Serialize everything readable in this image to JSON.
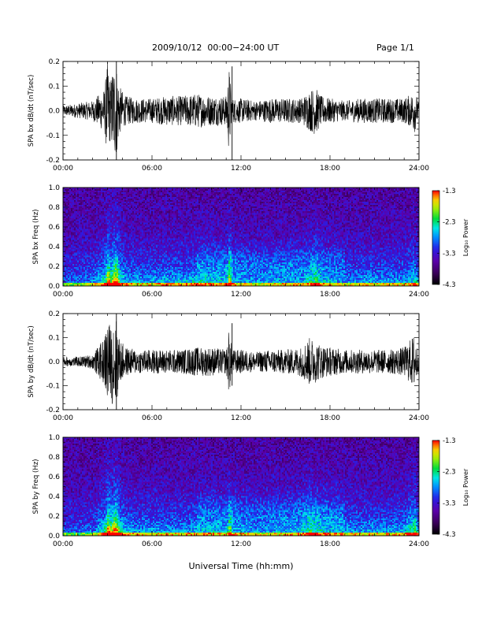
{
  "header": {
    "title": "2009/10/12  00:00−24:00 UT",
    "page": "Page 1/1"
  },
  "chart_data": [
    {
      "type": "line",
      "panel": "bx-time-series",
      "ylabel": "SPA bx dB/dt (nT/sec)",
      "ylim": [
        -0.2,
        0.2
      ],
      "y_ticks": [
        "-0.2",
        "-0.1",
        "0.0",
        "0.1",
        "0.2"
      ],
      "x_ticks": [
        "00:00",
        "06:00",
        "12:00",
        "18:00",
        "24:00"
      ],
      "x_range_hours": [
        0,
        24
      ],
      "series": [
        {
          "x_hours": [
            0,
            1,
            2,
            2.8,
            3.0,
            3.2,
            3.4,
            3.6,
            3.8,
            4.2,
            5,
            6,
            7,
            8,
            9,
            10,
            11,
            11.2,
            11.4,
            11.6,
            12,
            13,
            14,
            15,
            16,
            16.6,
            17,
            17.4,
            18,
            19,
            20,
            21,
            22,
            23,
            23.5,
            23.7,
            24
          ],
          "envelope": [
            0.02,
            0.03,
            0.04,
            0.09,
            0.2,
            0.12,
            0.2,
            0.19,
            0.1,
            0.06,
            0.05,
            0.05,
            0.06,
            0.06,
            0.07,
            0.06,
            0.06,
            0.18,
            0.05,
            0.05,
            0.05,
            0.04,
            0.05,
            0.05,
            0.05,
            0.08,
            0.1,
            0.06,
            0.05,
            0.04,
            0.05,
            0.05,
            0.05,
            0.05,
            0.07,
            0.09,
            0.03
          ]
        }
      ],
      "spikes": [
        {
          "x_hours": 11.4,
          "y_min": -0.2,
          "y_max": 0.18
        },
        {
          "x_hours": 3.6,
          "y_min": -0.2,
          "y_max": 0.2
        }
      ]
    },
    {
      "type": "heatmap",
      "panel": "bx-spectrogram",
      "ylabel": "SPA bx Freq (Hz)",
      "ylim": [
        0.0,
        1.0
      ],
      "y_ticks": [
        "0.0",
        "0.2",
        "0.4",
        "0.6",
        "0.8",
        "1.0"
      ],
      "x_ticks": [
        "00:00",
        "06:00",
        "12:00",
        "18:00",
        "24:00"
      ],
      "colorbar": {
        "label": "Log₁₀ Power",
        "range": [
          -4.3,
          -1.3
        ],
        "ticks": [
          "-1.3",
          "-2.3",
          "-3.3",
          "-4.3"
        ]
      }
    },
    {
      "type": "line",
      "panel": "by-time-series",
      "ylabel": "SPA by dB/dt (nT/sec)",
      "ylim": [
        -0.2,
        0.2
      ],
      "y_ticks": [
        "-0.2",
        "-0.1",
        "0.0",
        "0.1",
        "0.2"
      ],
      "x_ticks": [
        "00:00",
        "06:00",
        "12:00",
        "18:00",
        "24:00"
      ],
      "x_range_hours": [
        0,
        24
      ],
      "series": [
        {
          "x_hours": [
            0,
            1,
            2,
            2.8,
            3.0,
            3.2,
            3.4,
            3.6,
            3.8,
            4.2,
            5,
            6,
            7,
            8,
            9,
            10,
            11,
            11.2,
            11.4,
            11.6,
            12,
            13,
            14,
            15,
            16,
            16.6,
            17,
            17.4,
            18,
            19,
            20,
            21,
            22,
            23,
            23.5,
            23.7,
            24
          ],
          "envelope": [
            0.02,
            0.02,
            0.03,
            0.1,
            0.2,
            0.14,
            0.2,
            0.18,
            0.1,
            0.06,
            0.05,
            0.05,
            0.05,
            0.05,
            0.06,
            0.06,
            0.05,
            0.14,
            0.05,
            0.05,
            0.05,
            0.04,
            0.05,
            0.05,
            0.06,
            0.1,
            0.09,
            0.07,
            0.06,
            0.05,
            0.05,
            0.05,
            0.05,
            0.06,
            0.1,
            0.12,
            0.03
          ]
        }
      ],
      "spikes": [
        {
          "x_hours": 11.4,
          "y_min": -0.1,
          "y_max": 0.16
        },
        {
          "x_hours": 3.6,
          "y_min": -0.2,
          "y_max": 0.2
        }
      ]
    },
    {
      "type": "heatmap",
      "panel": "by-spectrogram",
      "ylabel": "SPA by Freq (Hz)",
      "ylim": [
        0.0,
        1.0
      ],
      "y_ticks": [
        "0.0",
        "0.2",
        "0.4",
        "0.6",
        "0.8",
        "1.0"
      ],
      "x_ticks": [
        "00:00",
        "06:00",
        "12:00",
        "18:00",
        "24:00"
      ],
      "colorbar": {
        "label": "Log₁₀ Power",
        "range": [
          -4.3,
          -1.3
        ],
        "ticks": [
          "-1.3",
          "-2.3",
          "-3.3",
          "-4.3"
        ]
      }
    }
  ],
  "xlabel": "Universal Time (hh:mm)"
}
